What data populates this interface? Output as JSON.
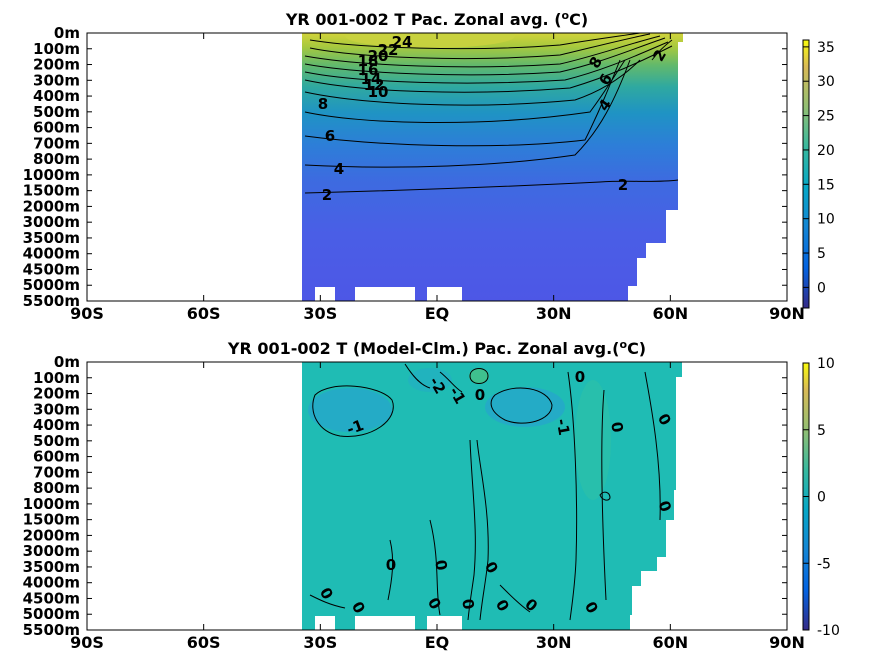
{
  "chart_data": [
    {
      "type": "heatmap",
      "title": "YR 001-002 T Pac. Zonal avg. (",
      "title_sup": "o",
      "title_end": "C)",
      "xlabel": "",
      "ylabel": "",
      "x_ticks": [
        "90S",
        "60S",
        "30S",
        "EQ",
        "30N",
        "60N",
        "90N"
      ],
      "x_range": [
        -90,
        90
      ],
      "y_ticks": [
        "0m",
        "100m",
        "200m",
        "300m",
        "400m",
        "500m",
        "600m",
        "700m",
        "800m",
        "1000m",
        "1500m",
        "2000m",
        "3000m",
        "3500m",
        "4000m",
        "4500m",
        "5000m",
        "5500m"
      ],
      "data_lat_extent": [
        -34,
        62
      ],
      "colorbar": {
        "ticks": [
          "35",
          "30",
          "25",
          "20",
          "15",
          "10",
          "5",
          "0"
        ],
        "range": [
          -3,
          36
        ],
        "colormap": "parula"
      },
      "contour_labels": [
        "24",
        "22",
        "20",
        "18",
        "16",
        "14",
        "12",
        "10",
        "8",
        "6",
        "4",
        "2",
        "8",
        "6",
        "4",
        "2",
        "2"
      ],
      "grid": false,
      "legend": "colorbar-right"
    },
    {
      "type": "heatmap",
      "title": "YR 001-002 T (Model-Clm.) Pac. Zonal avg.(",
      "title_sup": "o",
      "title_end": "C)",
      "xlabel": "",
      "ylabel": "",
      "x_ticks": [
        "90S",
        "60S",
        "30S",
        "EQ",
        "30N",
        "60N",
        "90N"
      ],
      "x_range": [
        -90,
        90
      ],
      "y_ticks": [
        "0m",
        "100m",
        "200m",
        "300m",
        "400m",
        "500m",
        "600m",
        "700m",
        "800m",
        "1000m",
        "1500m",
        "2000m",
        "3000m",
        "3500m",
        "4000m",
        "4500m",
        "5000m",
        "5500m"
      ],
      "data_lat_extent": [
        -34,
        62
      ],
      "colorbar": {
        "ticks": [
          "10",
          "5",
          "0",
          "-5",
          "-10"
        ],
        "range": [
          -10,
          10
        ],
        "colormap": "parula"
      },
      "contour_labels": [
        "-2",
        "-1",
        "0",
        "0",
        "-1",
        "-1",
        "0",
        "0",
        "0",
        "0",
        "0",
        "0",
        "0",
        "0",
        "0",
        "0",
        "0",
        "0",
        "0"
      ],
      "grid": false,
      "legend": "colorbar-right"
    }
  ]
}
